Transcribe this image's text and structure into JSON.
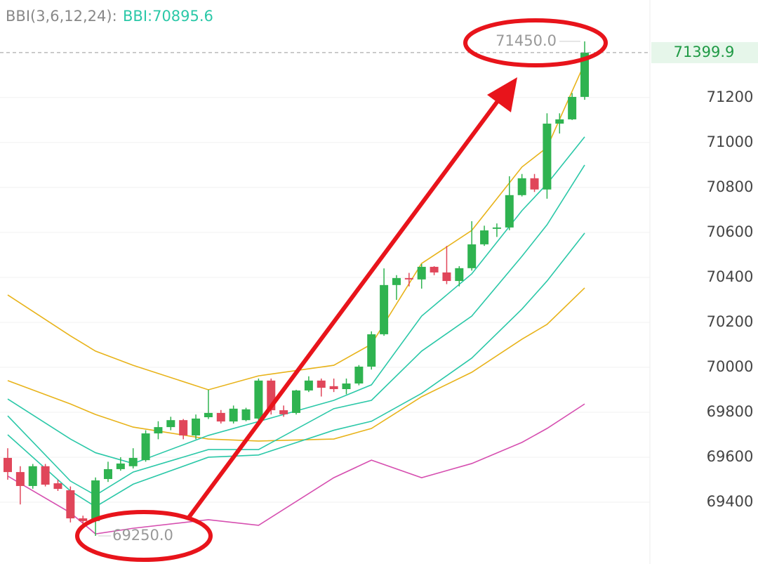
{
  "chart_data": {
    "type": "candlestick",
    "indicator_label": "BBI(3,6,12,24):",
    "indicator_value": "BBI:70895.6",
    "ylim": [
      69125,
      71634
    ],
    "yticks": [
      69400,
      69600,
      69800,
      70000,
      70200,
      70400,
      70600,
      70800,
      71000,
      71200
    ],
    "grid": true,
    "up_color": "#2fb350",
    "down_color": "#e0465a",
    "open": [
      69597,
      69534,
      69472,
      69560,
      69484,
      69453,
      69328,
      69316,
      69503,
      69547,
      69560,
      69587,
      69706,
      69734,
      69765,
      69697,
      69778,
      69797,
      69759,
      69765,
      69772,
      69941,
      69809,
      69797,
      69897,
      69941,
      69916,
      69903,
      69928,
      70003,
      70147,
      70366,
      70397,
      70391,
      70447,
      70422,
      70384,
      70441,
      70547,
      70616,
      70622,
      70766,
      70841,
      70791,
      71084,
      71103,
      71203
    ],
    "high": [
      69640,
      69560,
      69570,
      69570,
      69500,
      69470,
      69340,
      69510,
      69580,
      69600,
      69640,
      69720,
      69760,
      69780,
      69770,
      69790,
      69900,
      69810,
      69830,
      69820,
      69950,
      69950,
      69830,
      69900,
      69960,
      69950,
      69950,
      69950,
      70010,
      70160,
      70440,
      70410,
      70420,
      70460,
      70450,
      70540,
      70450,
      70650,
      70630,
      70640,
      70850,
      70860,
      70860,
      71130,
      71130,
      71220,
      71450
    ],
    "low": [
      69500,
      69390,
      69460,
      69470,
      69450,
      69310,
      69300,
      69250,
      69490,
      69540,
      69550,
      69580,
      69680,
      69720,
      69680,
      69680,
      69770,
      69750,
      69750,
      69760,
      69760,
      69790,
      69780,
      69790,
      69890,
      69870,
      69890,
      69880,
      69920,
      69990,
      70140,
      70300,
      70360,
      70350,
      70410,
      70370,
      70360,
      70430,
      70540,
      70580,
      70610,
      70760,
      70780,
      70750,
      71040,
      71100,
      71190
    ],
    "close": [
      69534,
      69472,
      69560,
      69478,
      69459,
      69328,
      69316,
      69497,
      69547,
      69572,
      69597,
      69706,
      69734,
      69765,
      69697,
      69772,
      69797,
      69759,
      69816,
      69813,
      69941,
      69809,
      69791,
      69897,
      69941,
      69909,
      69903,
      69928,
      70003,
      70147,
      70366,
      70397,
      70391,
      70447,
      70422,
      70384,
      70441,
      70547,
      70609,
      70622,
      70766,
      70841,
      70791,
      71084,
      71103,
      71203,
      71399.9
    ],
    "lines": [
      {
        "color": "#e8b31a",
        "x": [
          0,
          5,
          7,
          10,
          16,
          20,
          26,
          29,
          33,
          37,
          41,
          43,
          46
        ],
        "values": [
          70322,
          70140,
          70072,
          70009,
          69900,
          69962,
          70009,
          70103,
          70462,
          70609,
          70891,
          70978,
          71353
        ]
      },
      {
        "color": "#e8b31a",
        "x": [
          0,
          5,
          7,
          10,
          16,
          20,
          26,
          29,
          33,
          37,
          41,
          43,
          46
        ],
        "values": [
          69941,
          69837,
          69790,
          69734,
          69681,
          69672,
          69681,
          69728,
          69869,
          69978,
          70125,
          70191,
          70353
        ]
      },
      {
        "color": "#2bc8a8",
        "x": [
          0,
          5,
          7,
          10,
          16,
          20,
          26,
          29,
          33,
          37,
          41,
          43,
          46
        ],
        "values": [
          69859,
          69681,
          69620,
          69572,
          69697,
          69759,
          69853,
          69922,
          70228,
          70416,
          70697,
          70816,
          71025
        ]
      },
      {
        "color": "#2bc8a8",
        "x": [
          0,
          5,
          7,
          10,
          16,
          20,
          26,
          29,
          33,
          37,
          41,
          43,
          46
        ],
        "values": [
          69784,
          69494,
          69431,
          69534,
          69634,
          69634,
          69816,
          69853,
          70072,
          70228,
          70494,
          70634,
          70900
        ]
      },
      {
        "color": "#2bc8a8",
        "x": [
          0,
          5,
          7,
          10,
          16,
          20,
          26,
          29,
          33,
          37,
          41,
          43,
          46
        ],
        "values": [
          69700,
          69450,
          69380,
          69480,
          69600,
          69610,
          69720,
          69760,
          69884,
          70041,
          70259,
          70384,
          70597
        ]
      },
      {
        "color": "#d64fb0",
        "x": [
          0,
          5,
          7,
          10,
          16,
          20,
          26,
          29,
          33,
          37,
          41,
          43,
          46
        ],
        "values": [
          69516,
          69353,
          69259,
          69284,
          69322,
          69297,
          69509,
          69587,
          69509,
          69572,
          69666,
          69728,
          69837
        ]
      }
    ],
    "last_price": 71399.9,
    "max_marker": {
      "value": 71450,
      "label": "71450.0"
    },
    "min_marker": {
      "value": 69250,
      "label": "69250.0"
    }
  }
}
